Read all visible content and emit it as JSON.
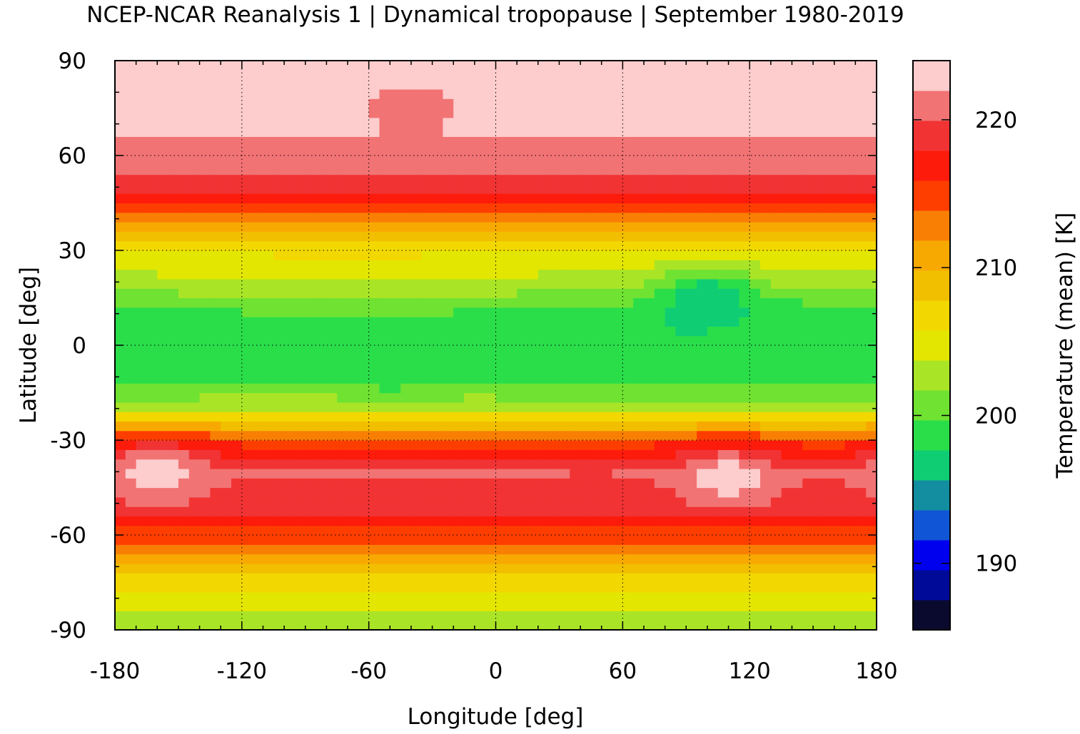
{
  "chart_data": {
    "type": "heatmap",
    "title": "NCEP-NCAR Reanalysis 1 | Dynamical tropopause | September 1980-2019",
    "xlabel": "Longitude [deg]",
    "ylabel": "Latitude [deg]",
    "xlim": [
      -180,
      180
    ],
    "ylim": [
      -90,
      90
    ],
    "x_ticks": [
      -180,
      -120,
      -60,
      0,
      60,
      120,
      180
    ],
    "y_ticks": [
      90,
      60,
      30,
      0,
      -30,
      -60,
      -90
    ],
    "x_tick_labels": [
      "-180",
      "-120",
      "-60",
      "0",
      "60",
      "120",
      "180"
    ],
    "y_tick_labels": [
      "90",
      "60",
      "30",
      "0",
      "-30",
      "-60",
      "-90"
    ],
    "grid": true,
    "colorbar": {
      "label": "Temperature (mean) [K]",
      "range": [
        185.5,
        224.0
      ],
      "ticks": [
        190,
        200,
        210,
        220
      ],
      "tick_labels": [
        "190",
        "200",
        "210",
        "220"
      ],
      "colors": [
        "#0a0a2e",
        "#000a99",
        "#0000ee",
        "#0f55d6",
        "#138ea0",
        "#0fcd73",
        "#2ade4a",
        "#6fe232",
        "#a9e526",
        "#e3e600",
        "#f2d800",
        "#f1be00",
        "#f8a901",
        "#f97f04",
        "#fe3e00",
        "#fd1b0c",
        "#f13334",
        "#f27374",
        "#fdcccc"
      ]
    },
    "latitude_profile": {
      "description_units": "K",
      "lat": [
        -90,
        -80,
        -70,
        -60,
        -50,
        -40,
        -30,
        -20,
        -10,
        0,
        10,
        20,
        30,
        40,
        50,
        60,
        70,
        80,
        90
      ],
      "values": [
        202,
        205,
        209,
        215,
        219,
        220,
        215,
        203,
        199,
        198.5,
        199,
        203,
        206,
        213,
        219,
        221,
        223,
        223,
        223
      ]
    },
    "features": [
      {
        "lon": 100,
        "lat": 15,
        "value": 196
      },
      {
        "lon": 120,
        "lat": 0,
        "value": 198
      },
      {
        "lon": -50,
        "lat": -5,
        "value": 198
      },
      {
        "lon": -40,
        "lat": 75,
        "value": 221
      },
      {
        "lon": 110,
        "lat": -42,
        "value": 223
      },
      {
        "lon": -160,
        "lat": -40,
        "value": 223
      }
    ]
  }
}
